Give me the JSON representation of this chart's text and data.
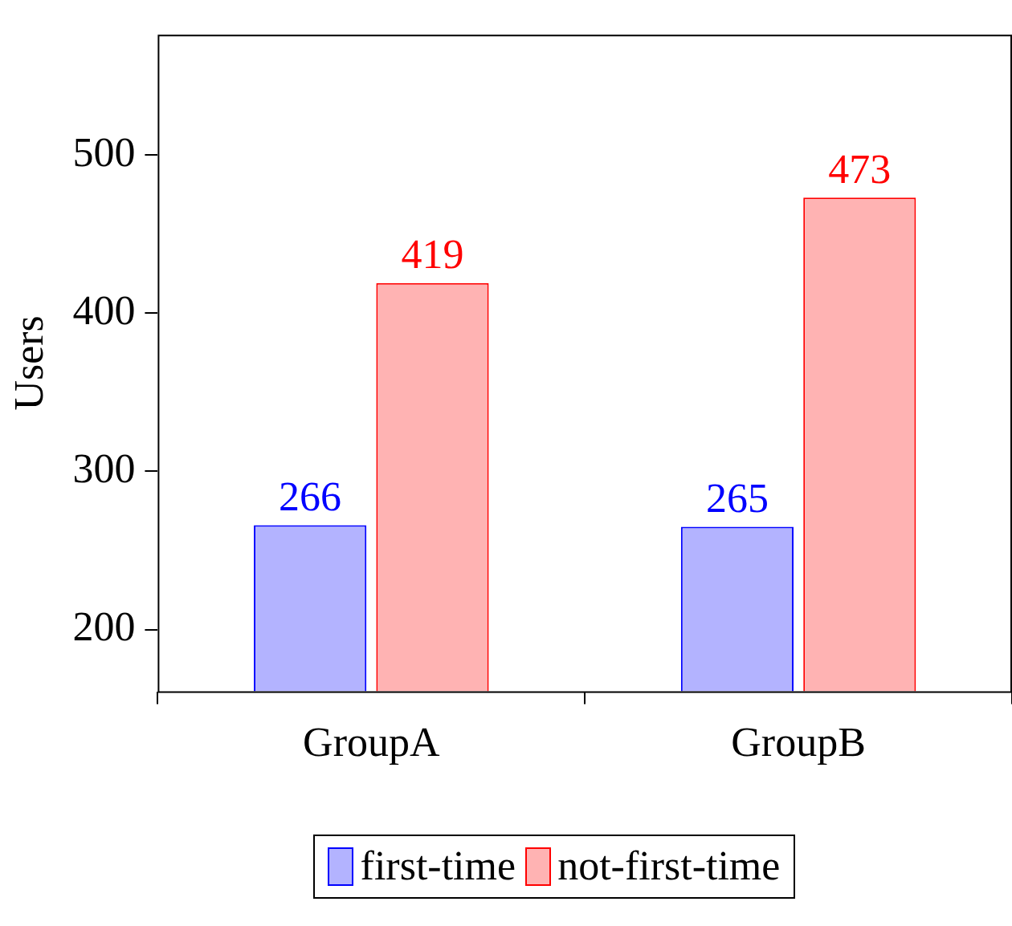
{
  "chart_data": {
    "type": "bar",
    "ylabel": "Users",
    "categories": [
      "GroupA",
      "GroupB"
    ],
    "series": [
      {
        "name": "first-time",
        "color": "#b3b3ff",
        "values": [
          266,
          265
        ]
      },
      {
        "name": "not-first-time",
        "color": "#ffb3b3",
        "values": [
          419,
          473
        ]
      }
    ],
    "ylim": [
      161,
      576
    ],
    "yticks": [
      200,
      300,
      400,
      500
    ],
    "data_labels": true,
    "legend": "bottom",
    "grid": false
  }
}
